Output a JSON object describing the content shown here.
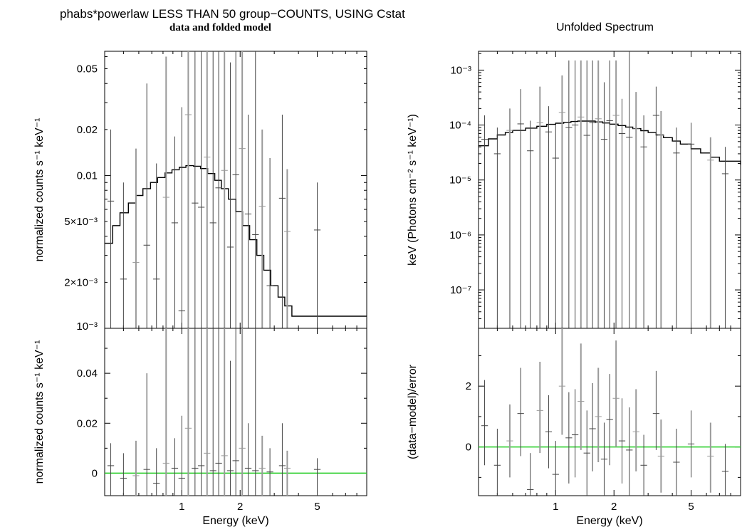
{
  "titles": {
    "main": "phabs*powerlaw LESS THAN 50 group−COUNTS, USING Cstat",
    "sub": "data and folded model",
    "right": "Unfolded Spectrum"
  },
  "colors": {
    "model": "#000000",
    "data_primary": "#444444",
    "data_secondary": "#9a9a9a",
    "zero_line": "#22cc22"
  },
  "chart_data": [
    {
      "id": "top-left",
      "type": "line",
      "title": "",
      "xlabel": "",
      "ylabel": "normalized counts s⁻¹ keV⁻¹",
      "xscale": "log",
      "yscale": "log",
      "xlim": [
        0.4,
        9.0
      ],
      "ylim": [
        0.001,
        0.065
      ],
      "yticks": [
        {
          "v": 0.05,
          "label": "0.05"
        },
        {
          "v": 0.02,
          "label": "0.02"
        },
        {
          "v": 0.01,
          "label": "0.01"
        },
        {
          "v": 0.005,
          "label": "5×10⁻³"
        },
        {
          "v": 0.002,
          "label": "2×10⁻³"
        },
        {
          "v": 0.001,
          "label": "10⁻³"
        }
      ],
      "xticks": [
        1,
        2,
        5
      ],
      "series": [
        {
          "kind": "model",
          "x": [
            0.4,
            0.44,
            0.48,
            0.53,
            0.58,
            0.63,
            0.69,
            0.75,
            0.82,
            0.89,
            0.97,
            1.05,
            1.15,
            1.25,
            1.36,
            1.48,
            1.6,
            1.74,
            1.9,
            2.06,
            2.24,
            2.44,
            2.65,
            2.88,
            3.14,
            3.4,
            3.7,
            4.2
          ],
          "y": [
            0.0036,
            0.0047,
            0.0057,
            0.0066,
            0.0074,
            0.0082,
            0.009,
            0.0097,
            0.0104,
            0.0109,
            0.0113,
            0.0116,
            0.0115,
            0.0111,
            0.0103,
            0.0093,
            0.0082,
            0.007,
            0.0058,
            0.0047,
            0.0038,
            0.003,
            0.0024,
            0.0019,
            0.0016,
            0.0014,
            0.0012,
            0.0012
          ]
        },
        {
          "kind": "data",
          "x": [
            0.43,
            0.5,
            0.58,
            0.66,
            0.74,
            0.83,
            0.92,
            1.0,
            1.08,
            1.17,
            1.26,
            1.35,
            1.45,
            1.55,
            1.66,
            1.78,
            1.9,
            2.05,
            2.2,
            2.4,
            2.6,
            2.85,
            3.3,
            3.5,
            5.0
          ],
          "y": [
            0.0068,
            0.0021,
            0.0027,
            0.0035,
            0.0021,
            0.0072,
            0.0049,
            0.0013,
            0.025,
            0.0066,
            0.0062,
            0.0132,
            0.0049,
            0.0083,
            0.0108,
            0.0034,
            0.0101,
            0.015,
            0.0056,
            0.0041,
            0.0063,
            0.0019,
            0.0071,
            0.0043,
            0.0044
          ],
          "lo": [
            0.001,
            0.001,
            0.001,
            0.001,
            0.001,
            0.001,
            0.001,
            0.001,
            0.001,
            0.001,
            0.001,
            0.001,
            0.001,
            0.001,
            0.001,
            0.001,
            0.001,
            0.001,
            0.001,
            0.001,
            0.001,
            0.001,
            0.001,
            0.001,
            0.001
          ],
          "hi": [
            0.02,
            0.009,
            0.015,
            0.04,
            0.012,
            0.06,
            0.018,
            0.028,
            0.065,
            0.065,
            0.065,
            0.065,
            0.065,
            0.065,
            0.065,
            0.055,
            0.065,
            0.065,
            0.025,
            0.065,
            0.02,
            0.013,
            0.025,
            0.011,
            0.009
          ]
        }
      ]
    },
    {
      "id": "bottom-left",
      "type": "scatter",
      "title": "",
      "xlabel": "Energy (keV)",
      "ylabel": "normalized counts s⁻¹ keV⁻¹",
      "xscale": "log",
      "yscale": "linear",
      "xlim": [
        0.4,
        9.0
      ],
      "ylim": [
        -0.009,
        0.058
      ],
      "yticks": [
        {
          "v": 0.04,
          "label": "0.04"
        },
        {
          "v": 0.02,
          "label": "0.02"
        },
        {
          "v": 0,
          "label": "0"
        }
      ],
      "xticks": [
        1,
        2,
        5
      ],
      "xticklabels": [
        "1",
        "2",
        "5"
      ],
      "zero_line": 0,
      "series": [
        {
          "kind": "data",
          "x": [
            0.43,
            0.5,
            0.58,
            0.66,
            0.74,
            0.83,
            0.92,
            1.0,
            1.08,
            1.17,
            1.26,
            1.35,
            1.45,
            1.55,
            1.66,
            1.78,
            1.9,
            2.05,
            2.2,
            2.4,
            2.6,
            2.85,
            3.3,
            3.5,
            5.0
          ],
          "y": [
            0.003,
            -0.002,
            -0.001,
            0.0015,
            -0.004,
            0.004,
            0.002,
            -0.002,
            0.018,
            0.002,
            0.003,
            0.008,
            0.001,
            0.004,
            0.007,
            0.001,
            0.005,
            0.01,
            0.002,
            0.001,
            0.002,
            0.0005,
            0.003,
            0.002,
            0.0015
          ],
          "lo": [
            -0.009,
            -0.009,
            -0.009,
            -0.009,
            -0.009,
            -0.009,
            -0.009,
            -0.009,
            -0.009,
            -0.009,
            -0.009,
            -0.009,
            -0.009,
            -0.009,
            -0.009,
            -0.009,
            -0.009,
            -0.009,
            -0.009,
            -0.009,
            -0.009,
            -0.009,
            -0.009,
            -0.009,
            -0.009
          ],
          "hi": [
            0.012,
            0.008,
            0.013,
            0.04,
            0.01,
            0.058,
            0.014,
            0.023,
            0.058,
            0.058,
            0.058,
            0.058,
            0.058,
            0.058,
            0.058,
            0.045,
            0.058,
            0.058,
            0.02,
            0.058,
            0.015,
            0.01,
            0.02,
            0.009,
            0.006
          ]
        }
      ]
    },
    {
      "id": "top-right",
      "type": "line",
      "title": "Unfolded Spectrum",
      "xlabel": "",
      "ylabel": "keV (Photons cm⁻² s⁻¹ keV⁻¹)",
      "xscale": "log",
      "yscale": "log",
      "xlim": [
        0.4,
        9.0
      ],
      "ylim": [
        2e-08,
        0.0022
      ],
      "yticks": [
        {
          "v": 0.001,
          "label": "10⁻³"
        },
        {
          "v": 0.0001,
          "label": "10⁻⁴"
        },
        {
          "v": 1e-05,
          "label": "10⁻⁵"
        },
        {
          "v": 1e-06,
          "label": "10⁻⁶"
        },
        {
          "v": 1e-07,
          "label": "10⁻⁷"
        }
      ],
      "xticks": [
        1,
        2,
        5
      ],
      "series": [
        {
          "kind": "model",
          "x": [
            0.4,
            0.45,
            0.5,
            0.55,
            0.6,
            0.7,
            0.8,
            0.9,
            1.0,
            1.1,
            1.2,
            1.3,
            1.45,
            1.6,
            1.75,
            1.9,
            2.1,
            2.3,
            2.5,
            2.75,
            3.0,
            3.3,
            3.6,
            4.0,
            4.4,
            5.0,
            5.6,
            6.3,
            7.0,
            9.0
          ],
          "y": [
            4.2e-05,
            5.6e-05,
            6.6e-05,
            7.3e-05,
            8e-05,
            8.8e-05,
            9.5e-05,
            0.000103,
            0.000108,
            0.000112,
            0.000116,
            0.000118,
            0.000118,
            0.000114,
            0.000109,
            0.000104,
            9.8e-05,
            9.2e-05,
            8.6e-05,
            7.9e-05,
            7.3e-05,
            6.6e-05,
            5.9e-05,
            5.1e-05,
            4.5e-05,
            3.7e-05,
            3.1e-05,
            2.6e-05,
            2.2e-05,
            1.9e-05
          ]
        },
        {
          "kind": "data",
          "x": [
            0.43,
            0.5,
            0.58,
            0.66,
            0.74,
            0.83,
            0.92,
            1.0,
            1.08,
            1.17,
            1.26,
            1.35,
            1.45,
            1.55,
            1.66,
            1.78,
            1.9,
            2.05,
            2.2,
            2.4,
            2.6,
            2.85,
            3.3,
            3.5,
            4.2,
            5.0,
            6.3,
            7.5
          ],
          "y": [
            5.5e-05,
            3e-05,
            8e-05,
            0.000105,
            3.4e-05,
            0.00011,
            7.5e-05,
            2.5e-05,
            0.00017,
            9e-05,
            0.0001,
            0.00014,
            6.5e-05,
            0.00011,
            0.00013,
            5.5e-05,
            0.00012,
            0.00015,
            7e-05,
            6e-05,
            8.5e-05,
            4e-05,
            0.00015,
            6.5e-05,
            3.1e-05,
            4.5e-05,
            2.3e-05,
            1.3e-05
          ],
          "lo": [
            2e-08,
            2e-08,
            2e-08,
            2e-08,
            2e-08,
            2e-08,
            2e-08,
            2e-08,
            2e-08,
            2e-08,
            2e-08,
            2e-08,
            2e-08,
            2e-08,
            2e-08,
            2e-08,
            2e-08,
            2e-08,
            2e-08,
            2e-08,
            2e-08,
            2e-08,
            2e-08,
            2e-08,
            2e-08,
            2e-08,
            2e-08,
            2e-08
          ],
          "hi": [
            0.00015,
            9e-05,
            0.0002,
            0.00045,
            0.00012,
            0.0005,
            0.00022,
            0.0001,
            0.0008,
            0.0015,
            0.0015,
            0.0015,
            0.0015,
            0.0015,
            0.0015,
            0.0006,
            0.0015,
            0.0015,
            0.0003,
            0.0022,
            0.0004,
            0.00015,
            0.0005,
            0.00018,
            9e-05,
            0.00011,
            6e-05,
            4e-05
          ]
        }
      ]
    },
    {
      "id": "bottom-right",
      "type": "scatter",
      "title": "",
      "xlabel": "Energy (keV)",
      "ylabel": "(data−model)/error",
      "xscale": "log",
      "yscale": "linear",
      "xlim": [
        0.4,
        9.0
      ],
      "ylim": [
        -1.6,
        3.9
      ],
      "yticks": [
        {
          "v": 2,
          "label": "2"
        },
        {
          "v": 0,
          "label": "0"
        }
      ],
      "xticks": [
        1,
        2,
        5
      ],
      "xticklabels": [
        "1",
        "2",
        "5"
      ],
      "zero_line": 0,
      "series": [
        {
          "kind": "data",
          "x": [
            0.43,
            0.5,
            0.58,
            0.66,
            0.74,
            0.83,
            0.92,
            1.0,
            1.08,
            1.17,
            1.26,
            1.35,
            1.45,
            1.55,
            1.66,
            1.78,
            1.9,
            2.05,
            2.2,
            2.4,
            2.6,
            2.85,
            3.3,
            3.5,
            4.2,
            5.0,
            6.3,
            7.5
          ],
          "y": [
            0.7,
            -0.6,
            0.2,
            1.1,
            -1.4,
            1.2,
            0.5,
            -0.9,
            2.0,
            0.3,
            0.4,
            1.5,
            -0.2,
            0.6,
            1.0,
            -0.4,
            0.9,
            1.6,
            0.2,
            -0.1,
            0.5,
            -0.6,
            1.1,
            -0.3,
            -0.5,
            0.1,
            -0.3,
            -0.8
          ],
          "lo": [
            -0.6,
            -1.6,
            -1.0,
            -0.3,
            -1.6,
            -0.2,
            -0.7,
            -1.6,
            0.4,
            -1.2,
            -1.0,
            -0.1,
            -1.6,
            -0.8,
            -0.5,
            -1.6,
            -0.6,
            0.0,
            -1.2,
            -1.6,
            -0.8,
            -1.6,
            -0.1,
            -1.5,
            -1.6,
            -1.0,
            -1.5,
            -1.6
          ],
          "hi": [
            2.2,
            0.6,
            1.4,
            2.6,
            -0.2,
            2.8,
            1.7,
            0.2,
            3.9,
            1.8,
            1.9,
            3.4,
            1.2,
            2.1,
            2.6,
            0.8,
            2.4,
            3.5,
            1.6,
            1.3,
            1.9,
            0.4,
            2.5,
            0.9,
            0.6,
            1.2,
            0.8,
            0.1
          ]
        }
      ]
    }
  ]
}
